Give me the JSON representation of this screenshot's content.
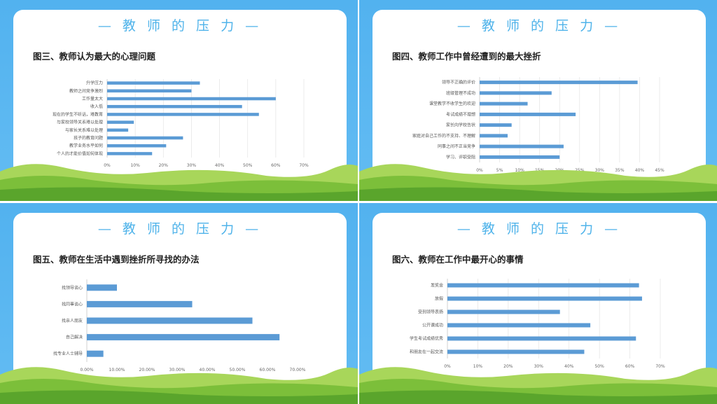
{
  "slides": [
    {
      "slide_title": "— 教 师 的 压 力 —",
      "chart_data": {
        "type": "bar",
        "orientation": "horizontal",
        "title": "图三、教师认为最大的心理问题",
        "categories": [
          "升学压力",
          "教师之间竞争激烈",
          "工作量太大",
          "收入低",
          "现在的学生不听话，难教育",
          "与家校领导关系难以处理",
          "与家长关系难以处理",
          "孩子的教育问题",
          "教学业务水平如何",
          "个人的才能价值如何体现"
        ],
        "values": [
          33,
          30,
          60,
          48,
          54,
          9.5,
          7.5,
          27,
          21,
          16
        ],
        "xlim": [
          0,
          70
        ],
        "xticks": [
          "0%",
          "10%",
          "20%",
          "30%",
          "40%",
          "50%",
          "60%",
          "70%"
        ],
        "grid": true,
        "color": "#5b9bd5"
      }
    },
    {
      "slide_title": "— 教 师 的 压 力 —",
      "chart_data": {
        "type": "bar",
        "orientation": "horizontal",
        "title": "图四、教师工作中曾经遭到的最大挫折",
        "categories": [
          "领导不正确的评价",
          "班级管理不成功",
          "课堂教学不收学生的欢迎",
          "考试成绩不理想",
          "家长向学校告状",
          "家庭对自己工作的不支持、不理解",
          "同事之间不正当竞争",
          "学习、评职受阻"
        ],
        "values": [
          39.5,
          18,
          12,
          24,
          8,
          7,
          21,
          20
        ],
        "xlim": [
          0,
          45
        ],
        "xticks": [
          "0%",
          "5%",
          "10%",
          "15%",
          "20%",
          "25%",
          "30%",
          "35%",
          "40%",
          "45%"
        ],
        "grid": true,
        "color": "#5b9bd5"
      }
    },
    {
      "slide_title": "— 教 师 的 压 力 —",
      "chart_data": {
        "type": "bar",
        "orientation": "horizontal",
        "title": "图五、教师在生活中遇到挫折所寻找的办法",
        "categories": [
          "找领导谈心",
          "找同事谈心",
          "找亲人朋友",
          "自己解决",
          "找专业人士辅导"
        ],
        "values": [
          10,
          35,
          55,
          64,
          5.5
        ],
        "xlim": [
          0,
          70
        ],
        "xticks": [
          "0.00%",
          "10.00%",
          "20.00%",
          "30.00%",
          "40.00%",
          "50.00%",
          "60.00%",
          "70.00%"
        ],
        "grid": false,
        "color": "#5b9bd5"
      }
    },
    {
      "slide_title": "— 教 师 的 压 力 —",
      "chart_data": {
        "type": "bar",
        "orientation": "horizontal",
        "title": "图六、教师在工作中最开心的事情",
        "categories": [
          "发奖金",
          "放假",
          "受到领导表扬",
          "公开课成功",
          "学生考试成绩优秀",
          "和朋友在一起交流"
        ],
        "values": [
          63,
          64,
          37,
          47,
          62,
          45
        ],
        "xlim": [
          0,
          70
        ],
        "xticks": [
          "0%",
          "10%",
          "20%",
          "30%",
          "40%",
          "50%",
          "60%",
          "70%"
        ],
        "grid": true,
        "color": "#5b9bd5"
      }
    }
  ]
}
